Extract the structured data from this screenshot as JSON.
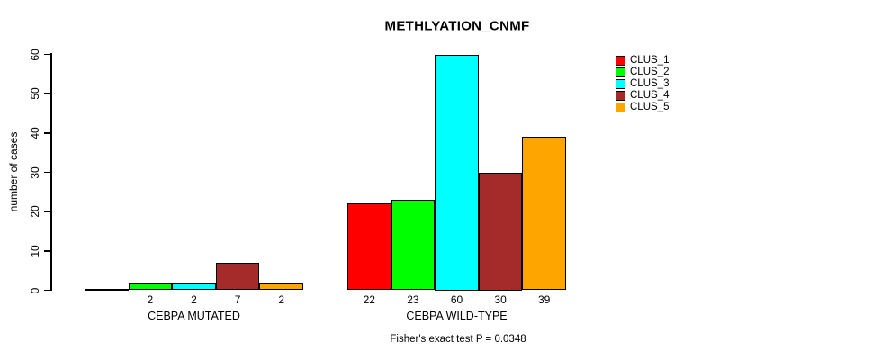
{
  "chart_data": {
    "type": "bar",
    "title": "METHLYATION_CNMF",
    "ylabel": "number of cases",
    "annotation": "Fisher's exact test P = 0.0348",
    "ylim": [
      0,
      60
    ],
    "yticks": [
      0,
      10,
      20,
      30,
      40,
      50,
      60
    ],
    "grid": false,
    "legend_position": "right",
    "categories": [
      "CEBPA MUTATED",
      "CEBPA WILD-TYPE"
    ],
    "series": [
      {
        "name": "CLUS_1",
        "color": "#FF0000",
        "values": [
          0,
          22
        ]
      },
      {
        "name": "CLUS_2",
        "color": "#00FF00",
        "values": [
          2,
          23
        ]
      },
      {
        "name": "CLUS_3",
        "color": "#00FFFF",
        "values": [
          2,
          60
        ]
      },
      {
        "name": "CLUS_4",
        "color": "#A52A2A",
        "values": [
          7,
          30
        ]
      },
      {
        "name": "CLUS_5",
        "color": "#FFA500",
        "values": [
          2,
          39
        ]
      }
    ],
    "bar_value_labels": [
      [
        "",
        "2",
        "2",
        "7",
        "2"
      ],
      [
        "22",
        "23",
        "60",
        "30",
        "39"
      ]
    ],
    "axis_color": "#000000",
    "background_color": "#FFFFFF"
  }
}
